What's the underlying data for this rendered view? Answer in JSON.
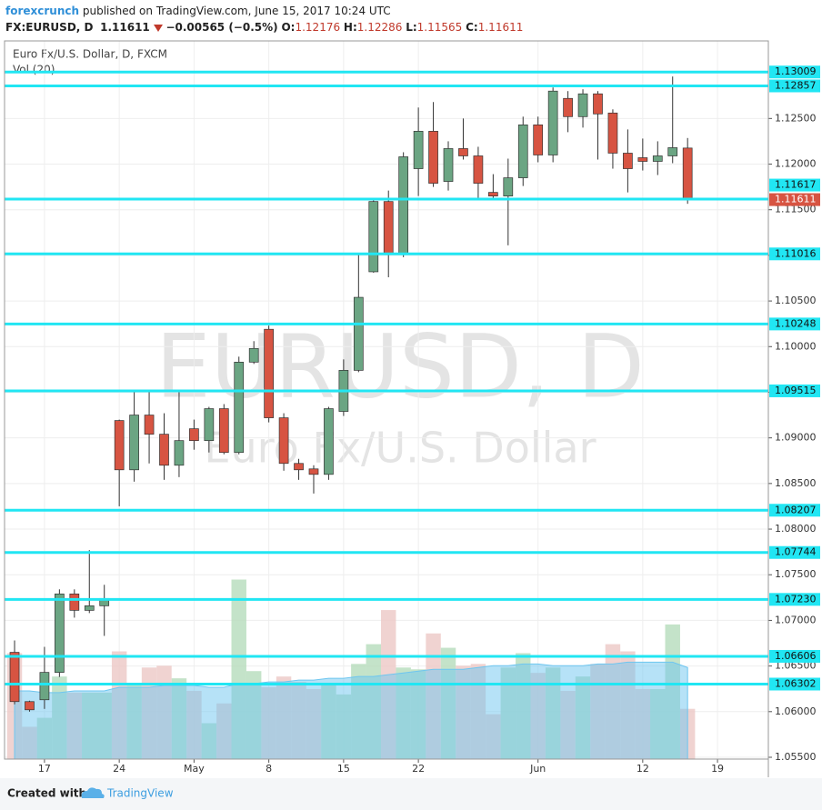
{
  "header": {
    "author": "forexcrunch",
    "published": "published on TradingView.com, June 15, 2017 10:24 UTC",
    "symbol": "FX:EURUSD, D",
    "change": "−0.00565 (−0.5%)",
    "o_label": "O:",
    "h_label": "H:",
    "l_label": "L:",
    "c_label": "C:"
  },
  "legend": {
    "instrument": "Euro Fx/U.S. Dollar, D, FXCM",
    "volume": "Vol (20)"
  },
  "watermark": {
    "symbol": "EURUSD, D",
    "description": "Euro Fx/U.S. Dollar"
  },
  "footer": {
    "created": "Created with",
    "brand": "TradingView"
  },
  "chart_data": {
    "type": "candlestick",
    "open": [
      1.0665,
      1.0611,
      1.0613,
      1.0643,
      1.0729,
      1.0711,
      1.0716,
      1.0919,
      1.0865,
      1.0925,
      1.0904,
      1.087,
      1.091,
      1.0897,
      1.0932,
      1.0884,
      1.0983,
      1.1019,
      1.0922,
      1.0872,
      1.0866,
      1.086,
      1.0929,
      1.0974,
      1.1082,
      1.1159,
      1.1101,
      1.1195,
      1.1236,
      1.1181,
      1.1217,
      1.1209,
      1.1169,
      1.1165,
      1.1185,
      1.1243,
      1.121,
      1.1272,
      1.1252,
      1.1277,
      1.1256,
      1.1212,
      1.1207,
      1.1203,
      1.1209,
      1.12176
    ],
    "high": [
      1.0678,
      1.0612,
      1.0671,
      1.0734,
      1.0734,
      1.0777,
      1.0739,
      1.092,
      1.095,
      1.095,
      1.0927,
      1.095,
      1.092,
      1.0934,
      1.0937,
      1.0989,
      1.1006,
      1.1023,
      1.0927,
      1.0877,
      1.087,
      1.0934,
      1.0986,
      1.1101,
      1.1161,
      1.1171,
      1.1213,
      1.1262,
      1.1268,
      1.1225,
      1.125,
      1.1219,
      1.1189,
      1.1206,
      1.1252,
      1.1252,
      1.1284,
      1.128,
      1.1282,
      1.128,
      1.126,
      1.1238,
      1.1228,
      1.1225,
      1.1296,
      1.12286
    ],
    "low": [
      1.0608,
      1.06,
      1.0603,
      1.0638,
      1.0703,
      1.0708,
      1.0683,
      1.0825,
      1.0852,
      1.0872,
      1.0854,
      1.0857,
      1.0887,
      1.0884,
      1.0882,
      1.0882,
      1.0981,
      1.0917,
      1.0864,
      1.0854,
      1.0839,
      1.0854,
      1.0924,
      1.0972,
      1.1081,
      1.1076,
      1.1098,
      1.1165,
      1.1175,
      1.1171,
      1.1205,
      1.1163,
      1.1163,
      1.1111,
      1.1176,
      1.1202,
      1.1202,
      1.1235,
      1.124,
      1.1205,
      1.1195,
      1.1169,
      1.1193,
      1.1188,
      1.1201,
      1.11565
    ],
    "close": [
      1.0611,
      1.0602,
      1.0643,
      1.0729,
      1.0711,
      1.0716,
      1.0724,
      1.0865,
      1.0925,
      1.0904,
      1.087,
      1.0897,
      1.0897,
      1.0932,
      1.0884,
      1.0983,
      1.0998,
      1.0922,
      1.0872,
      1.0865,
      1.086,
      1.0932,
      1.0974,
      1.1054,
      1.1159,
      1.1101,
      1.1208,
      1.1236,
      1.1179,
      1.1217,
      1.1209,
      1.1179,
      1.1165,
      1.1185,
      1.1243,
      1.121,
      1.128,
      1.1252,
      1.1277,
      1.1255,
      1.1212,
      1.1195,
      1.1203,
      1.1209,
      1.1218,
      1.11611
    ],
    "volume": [
      59,
      18,
      23,
      46,
      37,
      37,
      37,
      60,
      42,
      51,
      52,
      45,
      38,
      20,
      31,
      100,
      49,
      40,
      46,
      43,
      39,
      42,
      36,
      53,
      64,
      83,
      51,
      50,
      70,
      62,
      52,
      53,
      25,
      51,
      59,
      48,
      51,
      38,
      46,
      53,
      64,
      60,
      39,
      39,
      75,
      28
    ],
    "volume_ma": [
      38,
      38,
      37,
      37,
      38,
      38,
      38,
      40,
      40,
      40,
      41,
      41,
      41,
      40,
      40,
      42,
      42,
      43,
      43,
      44,
      44,
      45,
      45,
      46,
      46,
      47,
      48,
      49,
      50,
      50,
      50,
      51,
      52,
      52,
      53,
      53,
      52,
      52,
      52,
      53,
      53,
      54,
      54,
      54,
      54,
      51
    ],
    "up_color": "#6ba583",
    "down_color": "#d75442",
    "level_color": "#21e6f3",
    "volume_ma_color": "#6ec6f0",
    "levels": [
      1.13009,
      1.12857,
      1.11617,
      1.11016,
      1.10248,
      1.09515,
      1.08207,
      1.07744,
      {
        "value": 1.0723,
        "label": "1.07230"
      },
      1.06606,
      1.06302
    ],
    "ylim": [
      1.0548,
      1.1335
    ],
    "yticks": [
      {
        "value": 1.055,
        "label": "1.05500"
      },
      {
        "value": 1.06,
        "label": "1.06000"
      },
      {
        "value": 1.065,
        "label": "1.06500"
      },
      {
        "value": 1.07,
        "label": "1.07000"
      },
      {
        "value": 1.075,
        "label": "1.07500"
      },
      {
        "value": 1.08,
        "label": "1.08000"
      },
      {
        "value": 1.085,
        "label": "1.08500"
      },
      {
        "value": 1.09,
        "label": "1.09000"
      },
      {
        "value": 1.095,
        "label": "1.09500"
      },
      {
        "value": 1.1,
        "label": "1.10000"
      },
      {
        "value": 1.105,
        "label": "1.10500"
      },
      {
        "value": 1.11,
        "label": "1.11000"
      },
      {
        "value": 1.115,
        "label": "1.11500"
      },
      {
        "value": 1.12,
        "label": "1.12000"
      },
      {
        "value": 1.125,
        "label": "1.12500"
      }
    ],
    "y2lim": [
      0,
      400
    ],
    "xlim": [
      -0.67,
      50.4
    ],
    "xticks": [
      {
        "value": 2,
        "label": "17"
      },
      {
        "value": 7,
        "label": "24"
      },
      {
        "value": 12,
        "label": "May"
      },
      {
        "value": 17,
        "label": "8"
      },
      {
        "value": 22,
        "label": "15"
      },
      {
        "value": 27,
        "label": "22"
      },
      {
        "value": 35,
        "label": "Jun"
      },
      {
        "value": 42,
        "label": "12"
      },
      {
        "value": 47,
        "label": "19"
      }
    ],
    "grid": true
  }
}
